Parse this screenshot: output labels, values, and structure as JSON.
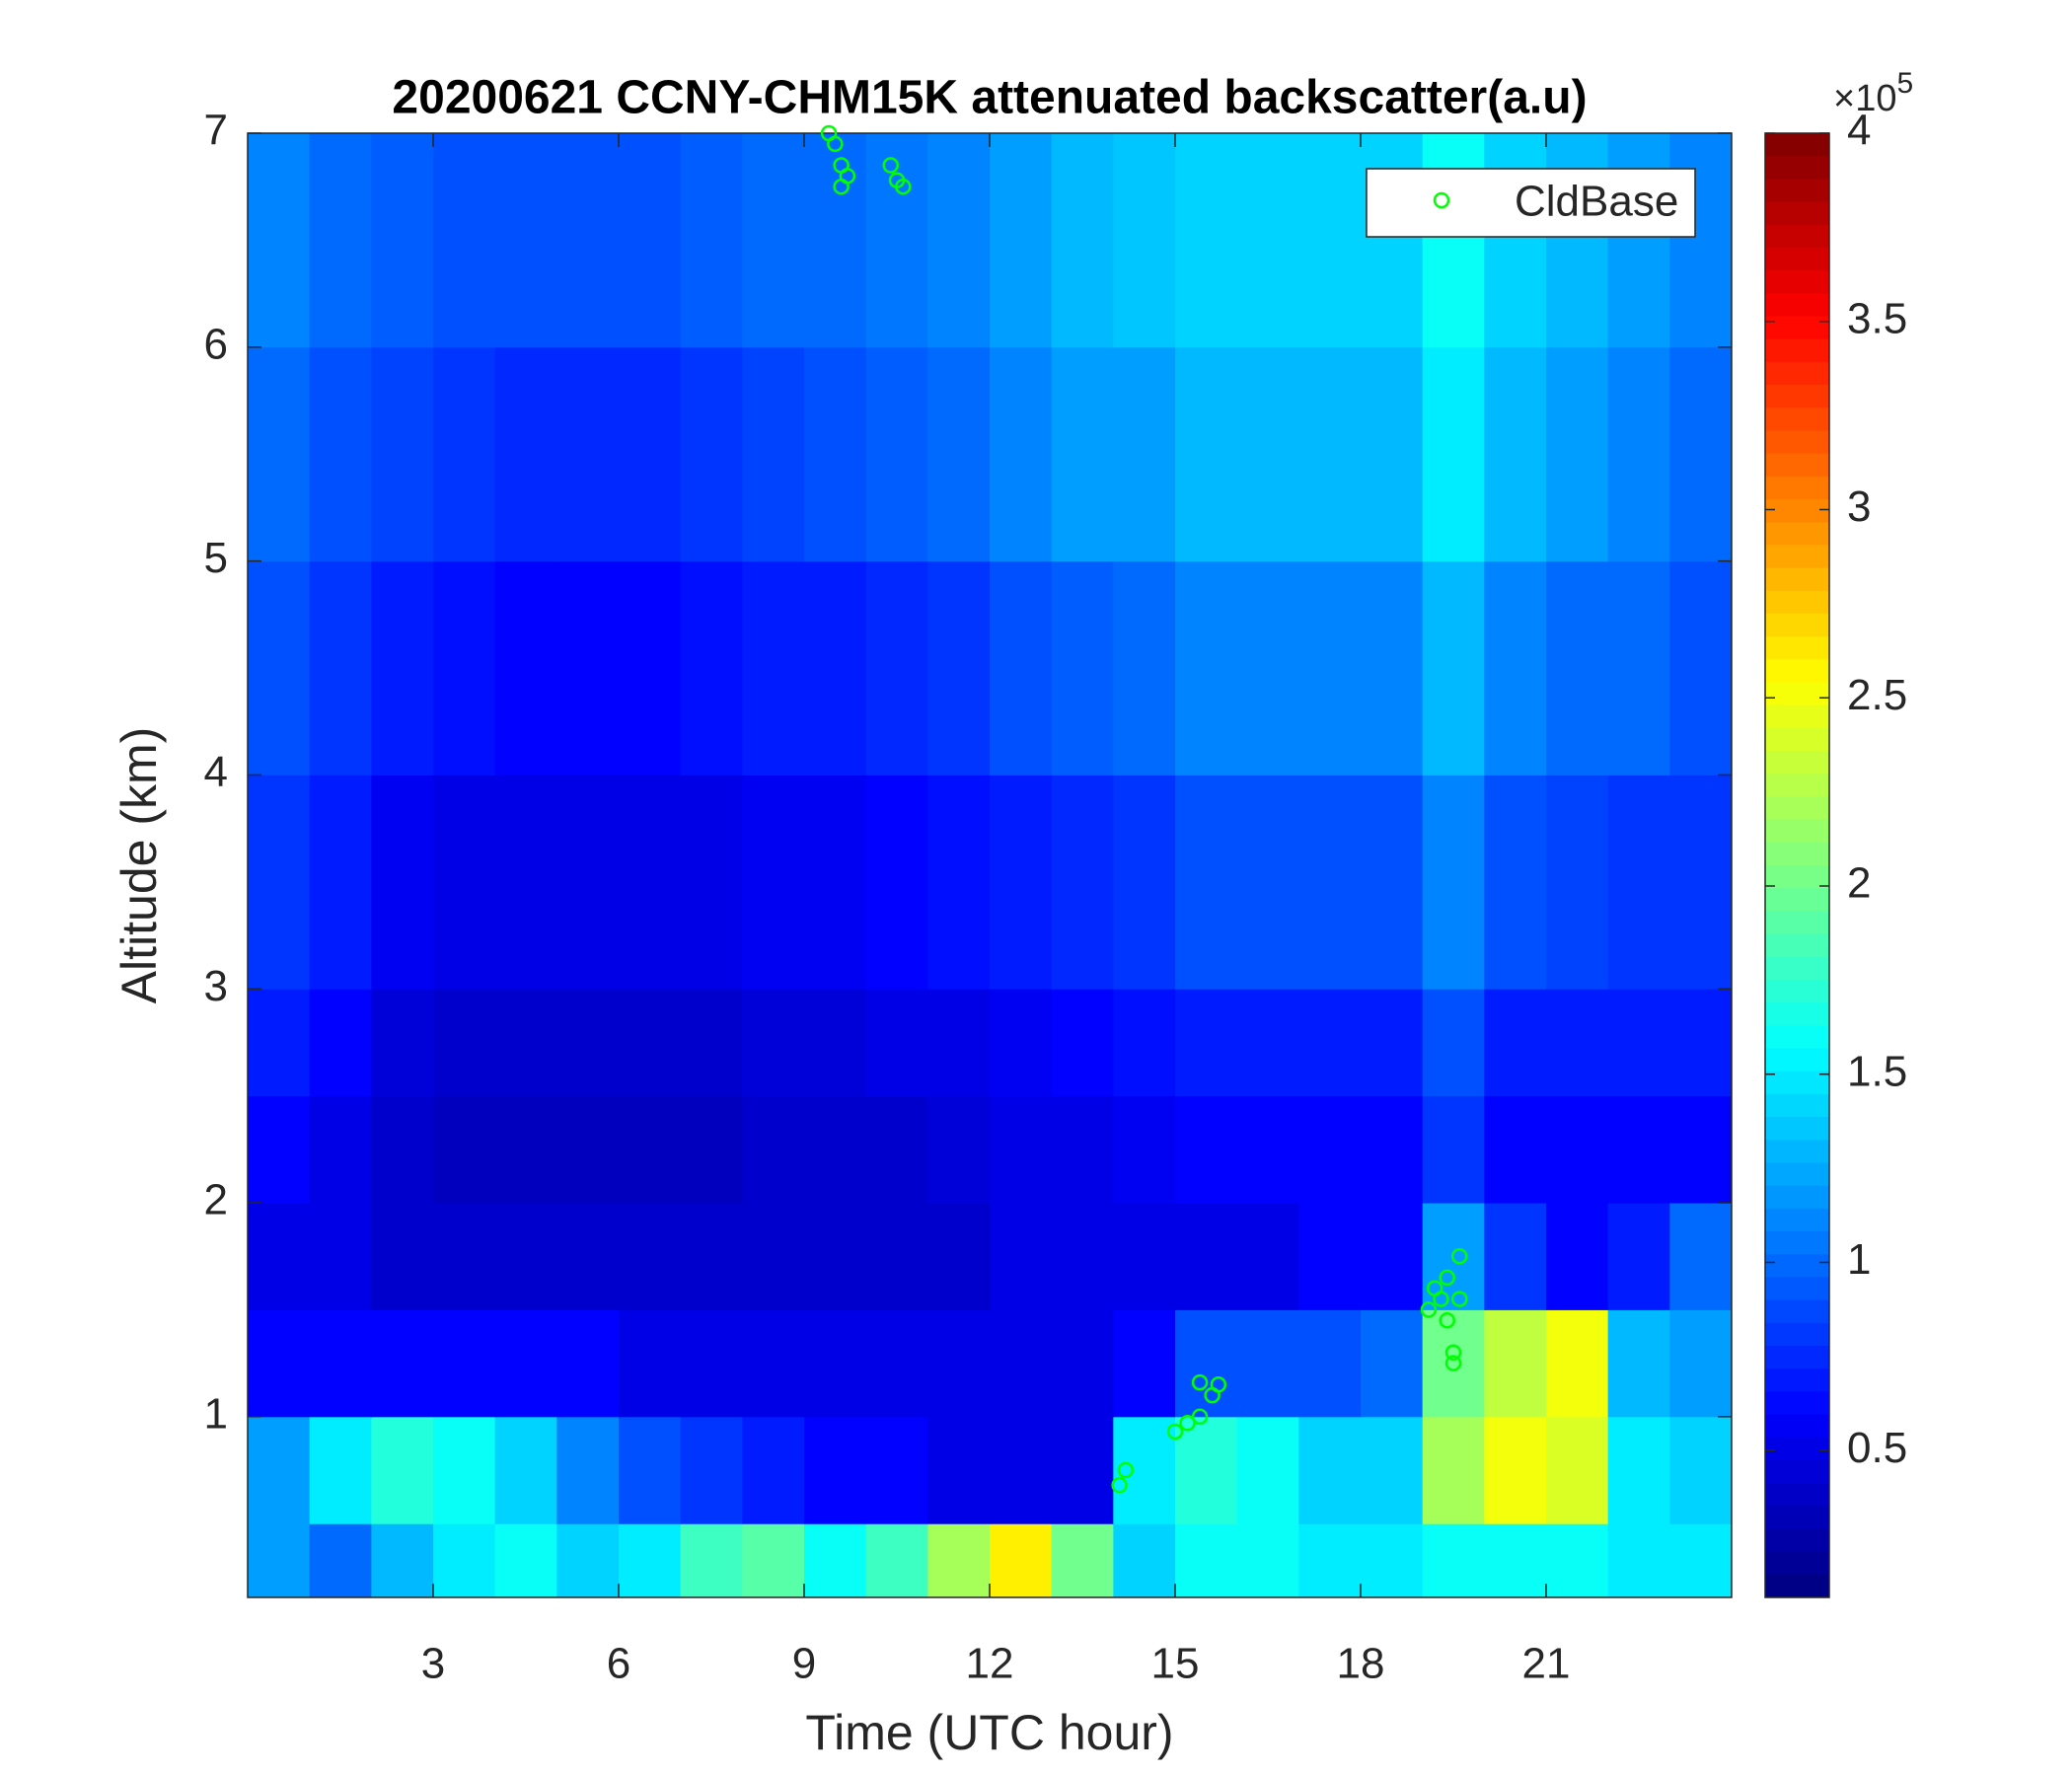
{
  "chart_data": {
    "type": "heatmap",
    "title": "20200621 CCNY-CHM15K attenuated backscatter(a.u)",
    "x_label": "Time (UTC hour)",
    "y_label": "Altitude (km)",
    "xlim": [
      0,
      24
    ],
    "ylim": [
      0.155,
      7
    ],
    "xticks": [
      3,
      6,
      9,
      12,
      15,
      18,
      21
    ],
    "yticks": [
      1,
      2,
      3,
      4,
      5,
      6,
      7
    ],
    "colormap": "jet",
    "clim": [
      0.11,
      4
    ],
    "colorbar_ticks": [
      0.5,
      1,
      1.5,
      2,
      2.5,
      3,
      3.5,
      4
    ],
    "colorbar_multiplier": {
      "base": "×10",
      "exponent": "5"
    },
    "x_edges": [
      0,
      1,
      2,
      3,
      4,
      5,
      6,
      7,
      8,
      9,
      10,
      11,
      12,
      13,
      14,
      15,
      16,
      17,
      18,
      19,
      20,
      21,
      22,
      23,
      24
    ],
    "y_edges": [
      0.155,
      0.5,
      1,
      1.5,
      2,
      2.5,
      3,
      4,
      5,
      6,
      7
    ],
    "values": [
      [
        1.2,
        1.0,
        1.3,
        1.5,
        1.6,
        1.4,
        1.5,
        1.8,
        1.9,
        1.6,
        1.8,
        2.2,
        2.6,
        2.0,
        1.4,
        1.6,
        1.6,
        1.5,
        1.5,
        1.6,
        1.6,
        1.6,
        1.5,
        1.5
      ],
      [
        1.2,
        1.5,
        1.7,
        1.6,
        1.4,
        1.1,
        0.9,
        0.8,
        0.7,
        0.6,
        0.6,
        0.5,
        0.5,
        0.5,
        1.5,
        1.7,
        1.6,
        1.4,
        1.4,
        2.2,
        2.5,
        2.4,
        1.5,
        1.4
      ],
      [
        0.6,
        0.6,
        0.6,
        0.6,
        0.6,
        0.6,
        0.5,
        0.5,
        0.5,
        0.5,
        0.5,
        0.5,
        0.5,
        0.5,
        0.6,
        0.9,
        0.9,
        0.9,
        1.0,
        2.0,
        2.3,
        2.5,
        1.3,
        1.2
      ],
      [
        0.5,
        0.5,
        0.4,
        0.4,
        0.4,
        0.4,
        0.4,
        0.4,
        0.4,
        0.4,
        0.4,
        0.4,
        0.5,
        0.5,
        0.5,
        0.5,
        0.5,
        0.6,
        0.6,
        1.2,
        0.8,
        0.6,
        0.7,
        1.0
      ],
      [
        0.6,
        0.5,
        0.4,
        0.35,
        0.35,
        0.35,
        0.35,
        0.35,
        0.4,
        0.4,
        0.4,
        0.45,
        0.5,
        0.5,
        0.55,
        0.6,
        0.6,
        0.6,
        0.6,
        0.8,
        0.6,
        0.6,
        0.6,
        0.6
      ],
      [
        0.7,
        0.6,
        0.45,
        0.4,
        0.4,
        0.4,
        0.4,
        0.4,
        0.45,
        0.45,
        0.5,
        0.5,
        0.55,
        0.6,
        0.65,
        0.7,
        0.7,
        0.7,
        0.7,
        0.9,
        0.7,
        0.7,
        0.7,
        0.7
      ],
      [
        0.8,
        0.7,
        0.55,
        0.5,
        0.5,
        0.5,
        0.5,
        0.5,
        0.55,
        0.55,
        0.6,
        0.65,
        0.7,
        0.75,
        0.8,
        0.9,
        0.9,
        0.9,
        0.9,
        1.1,
        0.9,
        0.85,
        0.8,
        0.8
      ],
      [
        0.9,
        0.8,
        0.7,
        0.65,
        0.6,
        0.6,
        0.6,
        0.65,
        0.7,
        0.7,
        0.75,
        0.8,
        0.9,
        0.95,
        1.0,
        1.1,
        1.1,
        1.1,
        1.1,
        1.3,
        1.1,
        1.0,
        1.0,
        0.9
      ],
      [
        1.0,
        0.9,
        0.85,
        0.8,
        0.75,
        0.75,
        0.75,
        0.8,
        0.85,
        0.9,
        0.95,
        1.0,
        1.1,
        1.2,
        1.2,
        1.3,
        1.3,
        1.3,
        1.3,
        1.5,
        1.3,
        1.2,
        1.1,
        1.0
      ],
      [
        1.1,
        1.0,
        0.95,
        0.9,
        0.9,
        0.9,
        0.9,
        0.95,
        1.0,
        1.0,
        1.05,
        1.1,
        1.2,
        1.3,
        1.35,
        1.4,
        1.4,
        1.4,
        1.4,
        1.6,
        1.4,
        1.3,
        1.2,
        1.1
      ]
    ],
    "legend": "northeast",
    "series": [
      {
        "name": "CldBase",
        "type": "scatter",
        "color": "#00ff00",
        "x": [
          9.4,
          9.5,
          9.6,
          9.6,
          9.7,
          10.4,
          10.5,
          10.6,
          14.1,
          14.2,
          15.0,
          15.2,
          15.4,
          15.4,
          15.6,
          15.7,
          19.1,
          19.2,
          19.3,
          19.4,
          19.5,
          19.5,
          19.6,
          19.6,
          19.4
        ],
        "values": [
          7.0,
          6.95,
          6.85,
          6.75,
          6.8,
          6.85,
          6.78,
          6.75,
          0.68,
          0.75,
          0.93,
          0.97,
          1.0,
          1.16,
          1.1,
          1.15,
          1.5,
          1.6,
          1.55,
          1.45,
          1.3,
          1.25,
          1.55,
          1.75,
          1.65
        ]
      }
    ]
  }
}
